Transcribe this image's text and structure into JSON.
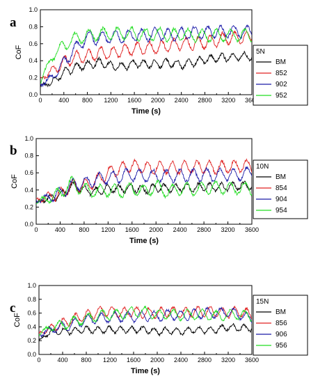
{
  "chart_data": [
    {
      "type": "line",
      "panel_label": "a",
      "xlabel": "Time (s)",
      "ylabel": "CoF",
      "xlim": [
        0,
        3600
      ],
      "ylim": [
        0.0,
        1.0
      ],
      "x_ticks": [
        "0",
        "400",
        "800",
        "1200",
        "1600",
        "2000",
        "2400",
        "2800",
        "3200",
        "3600"
      ],
      "y_ticks": [
        "0.0",
        "0.2",
        "0.4",
        "0.6",
        "0.8",
        "1.0"
      ],
      "legend_title": "5N",
      "legend_position": "right",
      "x": [
        0,
        200,
        400,
        600,
        800,
        1000,
        1200,
        1400,
        1600,
        1800,
        2000,
        2200,
        2400,
        2600,
        2800,
        3000,
        3200,
        3400,
        3600
      ],
      "series": [
        {
          "name": "BM",
          "color": "#000000",
          "values": [
            0.1,
            0.15,
            0.26,
            0.32,
            0.35,
            0.38,
            0.34,
            0.33,
            0.37,
            0.36,
            0.36,
            0.38,
            0.35,
            0.38,
            0.41,
            0.43,
            0.44,
            0.45,
            0.45
          ]
        },
        {
          "name": "852",
          "color": "#e02020",
          "values": [
            0.18,
            0.28,
            0.38,
            0.44,
            0.45,
            0.49,
            0.48,
            0.52,
            0.54,
            0.55,
            0.55,
            0.58,
            0.6,
            0.6,
            0.61,
            0.64,
            0.67,
            0.67,
            0.68
          ]
        },
        {
          "name": "902",
          "color": "#1a1aa8",
          "values": [
            0.12,
            0.2,
            0.38,
            0.55,
            0.68,
            0.66,
            0.68,
            0.68,
            0.7,
            0.7,
            0.72,
            0.7,
            0.72,
            0.73,
            0.73,
            0.74,
            0.74,
            0.74,
            0.75
          ]
        },
        {
          "name": "952",
          "color": "#22dd22",
          "values": [
            0.15,
            0.45,
            0.58,
            0.66,
            0.7,
            0.71,
            0.72,
            0.72,
            0.72,
            0.7,
            0.72,
            0.7,
            0.71,
            0.7,
            0.69,
            0.7,
            0.7,
            0.7,
            0.7
          ]
        }
      ]
    },
    {
      "type": "line",
      "panel_label": "b",
      "xlabel": "Time (s)",
      "ylabel": "CoF",
      "xlim": [
        0,
        3600
      ],
      "ylim": [
        0.0,
        1.0
      ],
      "x_ticks": [
        "0",
        "400",
        "800",
        "1200",
        "1600",
        "2000",
        "2400",
        "2800",
        "3200",
        "3600"
      ],
      "y_ticks": [
        "0.0",
        "0.2",
        "0.4",
        "0.6",
        "0.8",
        "1.0"
      ],
      "legend_title": "10N",
      "legend_position": "right",
      "x": [
        0,
        200,
        400,
        600,
        800,
        1000,
        1200,
        1400,
        1600,
        1800,
        2000,
        2200,
        2400,
        2600,
        2800,
        3000,
        3200,
        3400,
        3600,
        3700
      ],
      "series": [
        {
          "name": "BM",
          "color": "#000000",
          "values": [
            0.25,
            0.3,
            0.34,
            0.45,
            0.4,
            0.38,
            0.42,
            0.41,
            0.43,
            0.4,
            0.43,
            0.42,
            0.43,
            0.42,
            0.44,
            0.43,
            0.44,
            0.45,
            0.45,
            0.5
          ]
        },
        {
          "name": "854",
          "color": "#e02020",
          "values": [
            0.28,
            0.32,
            0.34,
            0.45,
            0.45,
            0.5,
            0.6,
            0.65,
            0.68,
            0.66,
            0.66,
            0.66,
            0.66,
            0.67,
            0.67,
            0.66,
            0.67,
            0.68,
            0.68,
            0.7
          ]
        },
        {
          "name": "904",
          "color": "#1a1aa8",
          "values": [
            0.27,
            0.31,
            0.35,
            0.46,
            0.48,
            0.52,
            0.54,
            0.56,
            0.58,
            0.56,
            0.57,
            0.56,
            0.57,
            0.57,
            0.58,
            0.57,
            0.58,
            0.58,
            0.6,
            0.6
          ]
        },
        {
          "name": "954",
          "color": "#22dd22",
          "values": [
            0.26,
            0.3,
            0.36,
            0.48,
            0.4,
            0.38,
            0.4,
            0.38,
            0.42,
            0.38,
            0.44,
            0.38,
            0.42,
            0.4,
            0.42,
            0.43,
            0.42,
            0.42,
            0.42,
            0.45
          ]
        }
      ]
    },
    {
      "type": "line",
      "panel_label": "c",
      "xlabel": "Time (s)",
      "ylabel": "CoF",
      "xlim": [
        0,
        3600
      ],
      "ylim": [
        0.0,
        1.0
      ],
      "x_ticks": [
        "0",
        "400",
        "800",
        "1200",
        "1600",
        "2000",
        "2400",
        "2800",
        "3200",
        "3600"
      ],
      "y_ticks": [
        "0.0",
        "0.2",
        "0.4",
        "0.6",
        "0.8",
        "1.0"
      ],
      "legend_title": "15N",
      "legend_position": "right",
      "x": [
        0,
        200,
        400,
        600,
        800,
        1000,
        1200,
        1400,
        1600,
        1800,
        2000,
        2200,
        2400,
        2600,
        2800,
        3000,
        3200,
        3400,
        3600
      ],
      "series": [
        {
          "name": "BM",
          "color": "#000000",
          "values": [
            0.2,
            0.33,
            0.34,
            0.34,
            0.36,
            0.35,
            0.36,
            0.36,
            0.36,
            0.36,
            0.33,
            0.35,
            0.33,
            0.36,
            0.35,
            0.36,
            0.4,
            0.38,
            0.38
          ]
        },
        {
          "name": "856",
          "color": "#e02020",
          "values": [
            0.3,
            0.38,
            0.45,
            0.52,
            0.56,
            0.62,
            0.63,
            0.6,
            0.62,
            0.6,
            0.6,
            0.62,
            0.6,
            0.62,
            0.62,
            0.62,
            0.6,
            0.62,
            0.58
          ]
        },
        {
          "name": "906",
          "color": "#1a1aa8",
          "values": [
            0.28,
            0.36,
            0.4,
            0.45,
            0.5,
            0.52,
            0.54,
            0.55,
            0.54,
            0.56,
            0.55,
            0.58,
            0.56,
            0.58,
            0.6,
            0.6,
            0.62,
            0.58,
            0.5
          ]
        },
        {
          "name": "956",
          "color": "#22dd22",
          "values": [
            0.3,
            0.4,
            0.42,
            0.48,
            0.52,
            0.56,
            0.58,
            0.58,
            0.62,
            0.62,
            0.57,
            0.58,
            0.57,
            0.58,
            0.58,
            0.56,
            0.57,
            0.58,
            0.55
          ]
        }
      ]
    }
  ]
}
